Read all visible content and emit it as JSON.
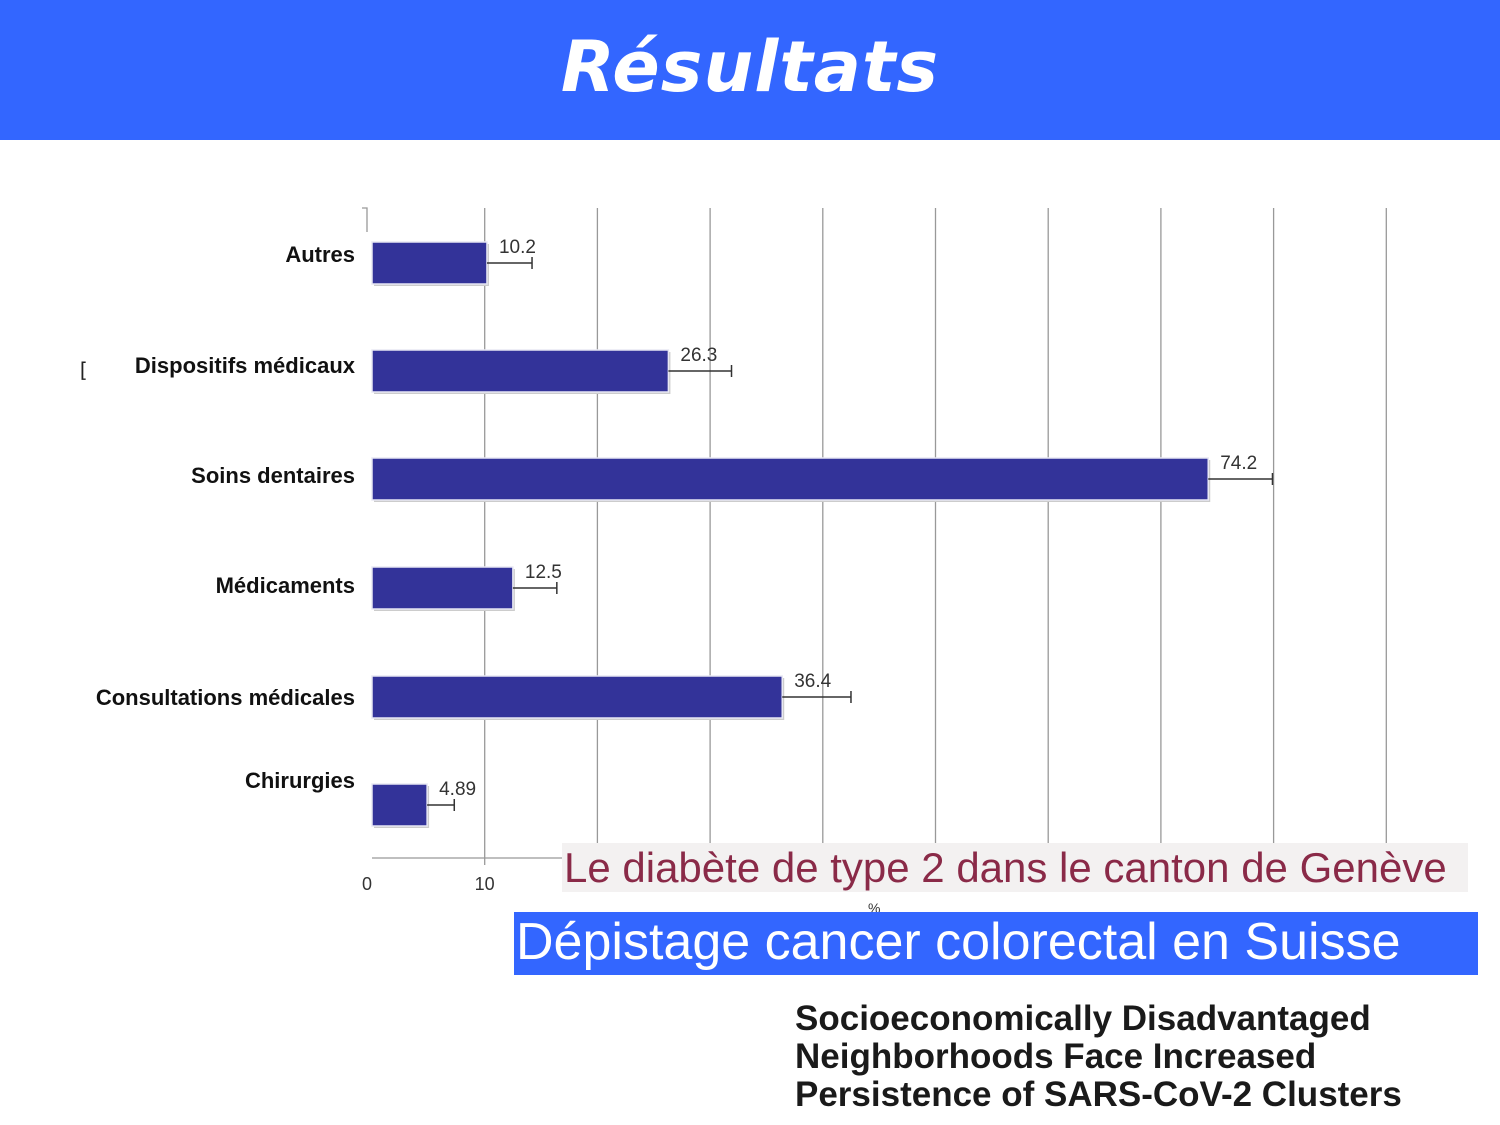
{
  "slide": {
    "title": "Résultats",
    "overlay_caption_1": "Le diabète de type 2 dans le canton de Genève",
    "overlay_caption_2": "Dépistage cancer colorectal en Suisse",
    "paper_title_lines": [
      "Socioeconomically Disadvantaged",
      "Neighborhoods Face Increased",
      "Persistence of SARS-CoV-2 Clusters"
    ],
    "stray_glyph": "[",
    "colors": {
      "header": "#3366ff",
      "bar": "#333399",
      "caption_1": "#8a2a48"
    }
  },
  "chart_data": {
    "type": "bar",
    "orientation": "horizontal",
    "categories": [
      "Autres",
      "Dispositifs médicaux",
      "Soins dentaires",
      "Médicaments",
      "Consultations médicales",
      "Chirurgies"
    ],
    "values": [
      10.2,
      26.3,
      74.2,
      12.5,
      36.4,
      4.89
    ],
    "data_labels": [
      "10.2",
      "26.3",
      "74.2",
      "12.5",
      "36.4",
      "4.89"
    ],
    "error_upper": [
      14.2,
      31.9,
      79.9,
      16.4,
      42.5,
      7.3
    ],
    "xlim": [
      0,
      90
    ],
    "xticks": [
      0,
      10
    ],
    "xtick_labels": [
      "0",
      "10"
    ],
    "xlabel": "%",
    "grid": true,
    "bar_color": "#333399"
  }
}
